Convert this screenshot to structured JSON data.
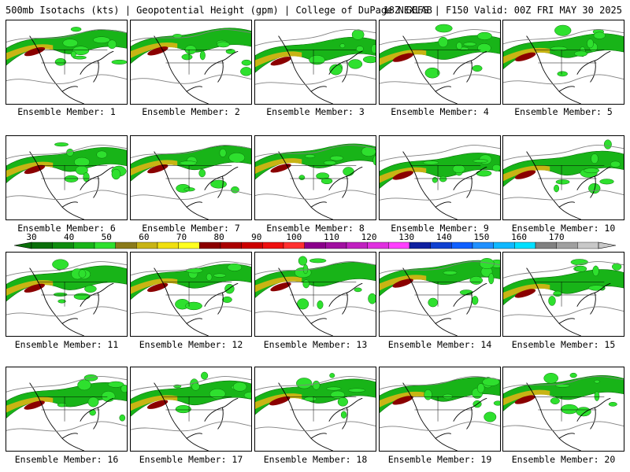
{
  "header": {
    "left": "500mb Isotachs (kts) | Geopotential Height (gpm) | College of DuPage NEXLAB",
    "right": "18Z GEFS | F150 Valid: 00Z FRI MAY 30 2025"
  },
  "colorbar": {
    "labels": [
      "30",
      "40",
      "50",
      "60",
      "70",
      "80",
      "90",
      "100",
      "110",
      "120",
      "130",
      "140",
      "150",
      "160",
      "170"
    ],
    "colors": [
      "#0a6e0a",
      "#0f8c0f",
      "#18b418",
      "#2ee02e",
      "#8a7a1a",
      "#c8b414",
      "#f0e010",
      "#ffff20",
      "#8b0000",
      "#aa0000",
      "#cc0000",
      "#ee1010",
      "#ff3030",
      "#8a008a",
      "#a010a0",
      "#c020c0",
      "#e030e0",
      "#ff40ff",
      "#1020a0",
      "#1040d0",
      "#1060ff",
      "#2090ff",
      "#10b8ff",
      "#00e0ff",
      "#808080",
      "#a0a0a0",
      "#c8c8c8"
    ]
  },
  "members": [
    {
      "label": "Ensemble Member: 1"
    },
    {
      "label": "Ensemble Member: 2"
    },
    {
      "label": "Ensemble Member: 3"
    },
    {
      "label": "Ensemble Member: 4"
    },
    {
      "label": "Ensemble Member: 5"
    },
    {
      "label": "Ensemble Member: 6"
    },
    {
      "label": "Ensemble Member: 7"
    },
    {
      "label": "Ensemble Member: 8"
    },
    {
      "label": "Ensemble Member: 9"
    },
    {
      "label": "Ensemble Member: 10"
    },
    {
      "label": "Ensemble Member: 11"
    },
    {
      "label": "Ensemble Member: 12"
    },
    {
      "label": "Ensemble Member: 13"
    },
    {
      "label": "Ensemble Member: 14"
    },
    {
      "label": "Ensemble Member: 15"
    },
    {
      "label": "Ensemble Member: 16"
    },
    {
      "label": "Ensemble Member: 17"
    },
    {
      "label": "Ensemble Member: 18"
    },
    {
      "label": "Ensemble Member: 19"
    },
    {
      "label": "Ensemble Member: 20"
    }
  ]
}
